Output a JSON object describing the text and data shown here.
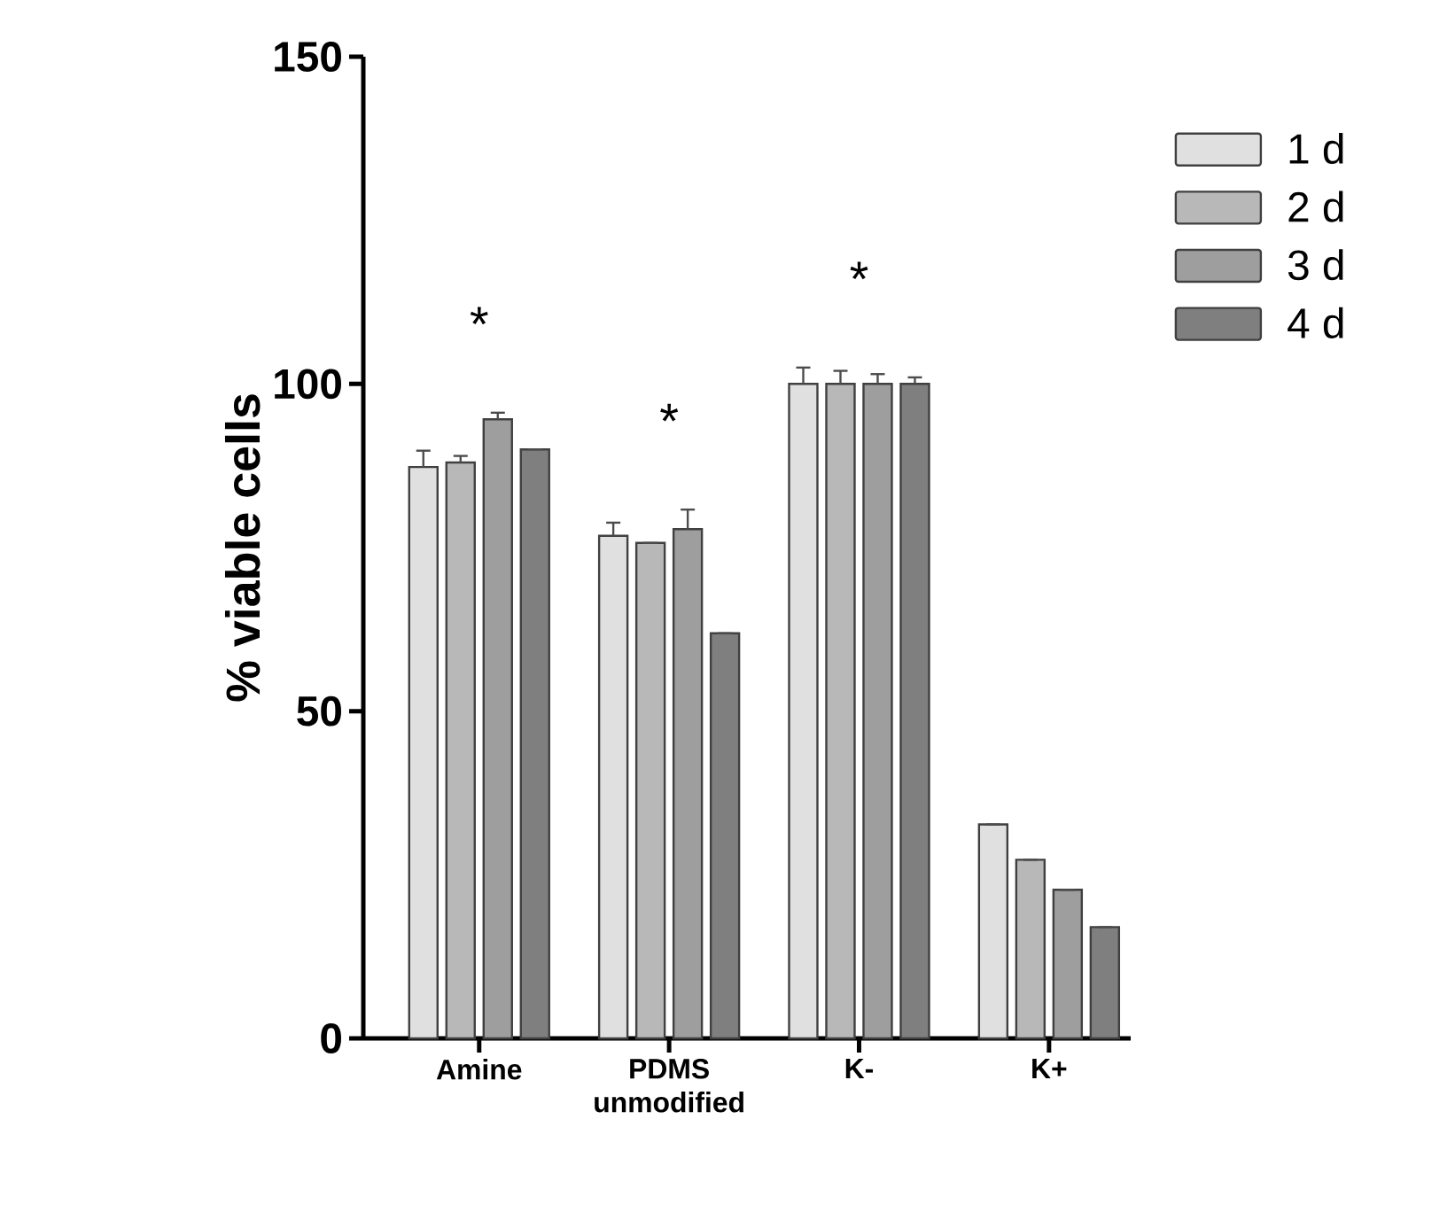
{
  "chart_data": {
    "type": "bar",
    "ylabel": "% viable cells",
    "categories": [
      "Amine",
      "PDMS unmodified",
      "K-",
      "K+"
    ],
    "series": [
      {
        "name": "1 d",
        "color": "#e0e0e0",
        "values": [
          87.3,
          76.8,
          100,
          32.7
        ],
        "errors": [
          2.5,
          2,
          2.5,
          null
        ]
      },
      {
        "name": "2 d",
        "color": "#b8b8b8",
        "values": [
          88,
          75.7,
          100,
          27.3
        ],
        "errors": [
          1,
          null,
          2,
          null
        ]
      },
      {
        "name": "3 d",
        "color": "#9e9e9e",
        "values": [
          94.6,
          77.8,
          100,
          22.7
        ],
        "errors": [
          1,
          3,
          1.5,
          null
        ]
      },
      {
        "name": "4 d",
        "color": "#7f7f7f",
        "values": [
          90,
          61.9,
          100,
          17
        ],
        "errors": [
          null,
          null,
          1,
          null
        ]
      }
    ],
    "ylim": [
      0,
      150
    ],
    "yticks": [
      0,
      50,
      100,
      150
    ],
    "legend": "right",
    "annotations": [
      "*",
      "*",
      "*"
    ]
  }
}
